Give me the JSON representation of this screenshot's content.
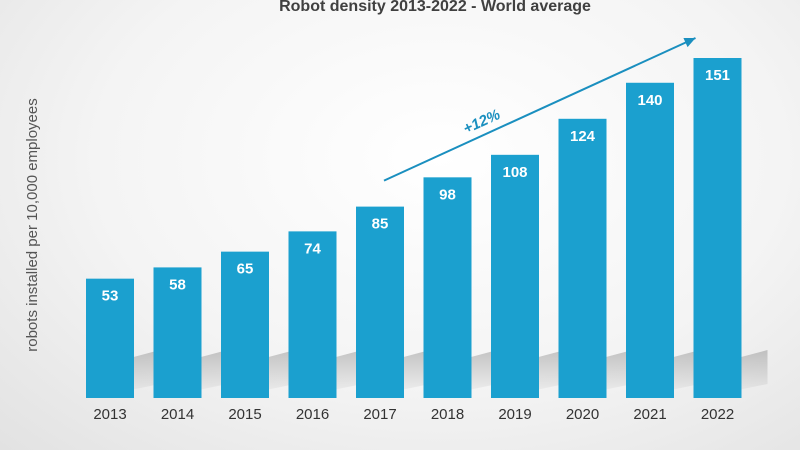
{
  "chart_data": {
    "type": "bar",
    "title": "Robot density 2013-2022 - World average",
    "ylabel": "robots installed per 10,000 employees",
    "xlabel": "",
    "categories": [
      "2013",
      "2014",
      "2015",
      "2016",
      "2017",
      "2018",
      "2019",
      "2020",
      "2021",
      "2022"
    ],
    "values": [
      53,
      58,
      65,
      74,
      85,
      98,
      108,
      124,
      140,
      151
    ],
    "data_labels": [
      "53",
      "58",
      "65",
      "74",
      "85",
      "98",
      "108",
      "124",
      "140",
      "151"
    ],
    "ylim": [
      0,
      151
    ],
    "grid": false,
    "legend": "none",
    "annotation": {
      "text": "+12%",
      "from_category": "2017",
      "to_category": "2022"
    },
    "colors": {
      "bar": "#1ba0cf",
      "arrow": "#1a8fbf",
      "title": "#404040",
      "value_label": "#ffffff"
    }
  }
}
